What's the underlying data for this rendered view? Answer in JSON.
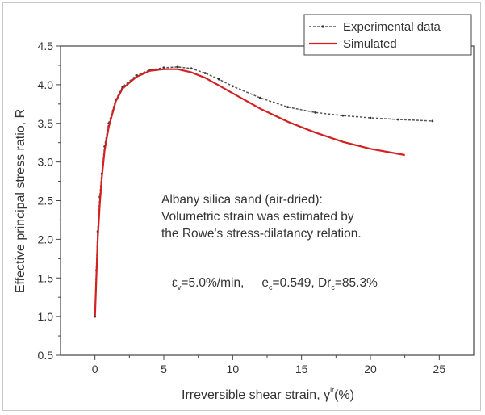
{
  "chart_data": {
    "type": "line",
    "xlabel_main": "Irreversible shear strain, ",
    "xlabel_symbol": "γ",
    "xlabel_sup": "ir",
    "xlabel_unit": "(%)",
    "ylabel": "Effective principal stress ratio, R",
    "xlim": [
      -2.5,
      27.5
    ],
    "ylim": [
      0.5,
      4.5
    ],
    "xticks": [
      0,
      5,
      10,
      15,
      20,
      25
    ],
    "yticks": [
      0.5,
      1.0,
      1.5,
      2.0,
      2.5,
      3.0,
      3.5,
      4.0,
      4.5
    ],
    "xtick_labels": [
      "0",
      "5",
      "10",
      "15",
      "20",
      "25"
    ],
    "ytick_labels": [
      "0.5",
      "1.0",
      "1.5",
      "2.0",
      "2.5",
      "3.0",
      "3.5",
      "4.0",
      "4.5"
    ],
    "grid": false,
    "legend_position": "top-right",
    "series": [
      {
        "name": "Experimental data",
        "color": "#555555",
        "style": "dotted-line-with-markers",
        "x": [
          0,
          0.1,
          0.2,
          0.35,
          0.5,
          0.7,
          1.0,
          1.5,
          2.0,
          3.0,
          4.0,
          5.0,
          6.0,
          7.0,
          8.0,
          9.0,
          10.0,
          12.0,
          14.0,
          16.0,
          18.0,
          20.0,
          22.0,
          24.5
        ],
        "y": [
          1.0,
          1.6,
          2.1,
          2.55,
          2.85,
          3.2,
          3.5,
          3.8,
          3.97,
          4.12,
          4.19,
          4.22,
          4.23,
          4.21,
          4.15,
          4.07,
          3.98,
          3.83,
          3.71,
          3.64,
          3.6,
          3.57,
          3.55,
          3.53
        ]
      },
      {
        "name": "Simulated",
        "color": "#d32020",
        "style": "solid",
        "x": [
          0,
          0.1,
          0.2,
          0.35,
          0.5,
          0.7,
          1.0,
          1.5,
          2.0,
          3.0,
          4.0,
          5.0,
          6.0,
          7.0,
          8.0,
          9.0,
          10.0,
          12.0,
          14.0,
          16.0,
          18.0,
          20.0,
          22.5
        ],
        "y": [
          1.0,
          1.5,
          2.0,
          2.45,
          2.8,
          3.15,
          3.45,
          3.78,
          3.95,
          4.1,
          4.18,
          4.2,
          4.2,
          4.16,
          4.09,
          3.99,
          3.89,
          3.69,
          3.52,
          3.38,
          3.26,
          3.17,
          3.09
        ]
      }
    ],
    "annotation": {
      "line1": "Albany silica sand (air-dried):",
      "line2": "Volumetric strain was estimated by",
      "line3": "the Rowe's stress-dilatancy relation.",
      "cond_eps": "ε",
      "cond_eps_sub": "v",
      "cond_rate": "=5.0%/min,",
      "cond_e": "e",
      "cond_e_sub": "c",
      "cond_e_val": "=0.549, Dr",
      "cond_dr_sub": "c",
      "cond_dr_val": "=85.3%"
    }
  }
}
